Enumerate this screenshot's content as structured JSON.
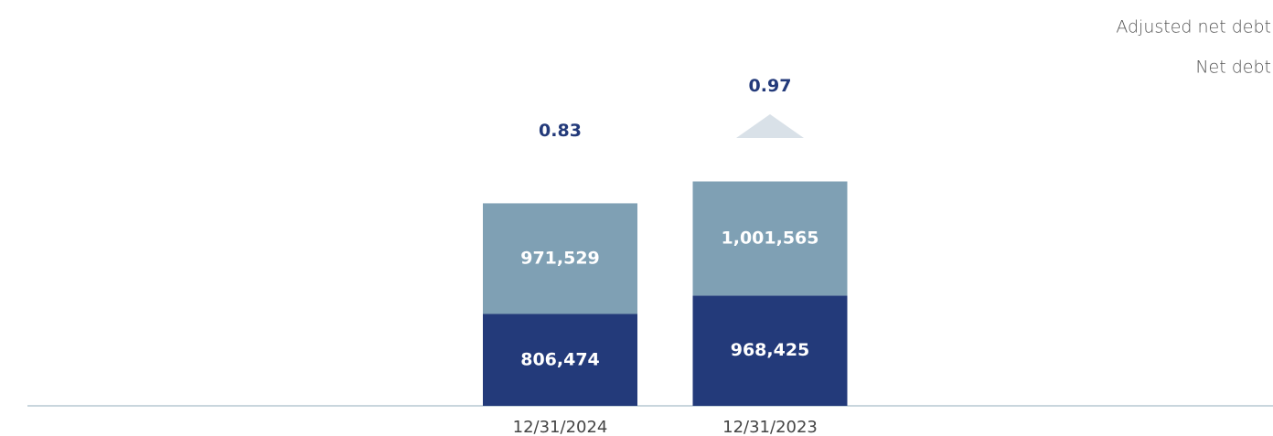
{
  "chart_data": {
    "type": "stacked_bar",
    "categories": [
      "12/31/2024",
      "12/31/2023"
    ],
    "series": [
      {
        "name": "Net debt",
        "color": "#233a7a",
        "values": [
          806474,
          968425
        ],
        "value_labels": [
          "806,474",
          "968,425"
        ]
      },
      {
        "name": "Adjusted net debt",
        "color": "#7fa0b4",
        "values": [
          971529,
          1001565
        ],
        "value_labels": [
          "971,529",
          "1,001,565"
        ]
      }
    ],
    "annotations": [
      "0.83",
      "0.97"
    ],
    "ylim": [
      0,
      2600000
    ],
    "grid": false
  }
}
